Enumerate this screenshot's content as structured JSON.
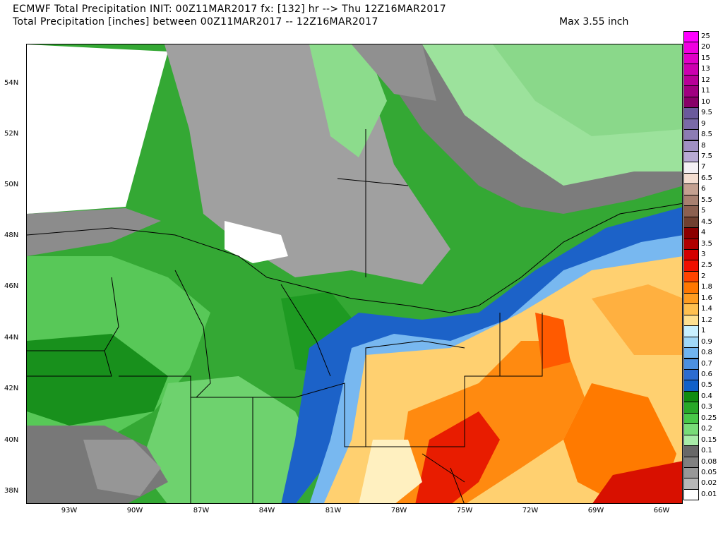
{
  "header": {
    "line1": "ECMWF Total Precipitation INIT: 00Z11MAR2017 fx: [132] hr --> Thu 12Z16MAR2017",
    "line2": "Total Precipitation [inches] between 00Z11MAR2017 -- 12Z16MAR2017",
    "max": "Max 3.55 inch"
  },
  "lat_labels": [
    "54N",
    "52N",
    "50N",
    "48N",
    "46N",
    "44N",
    "42N",
    "40N",
    "38N"
  ],
  "lon_labels": [
    "93W",
    "90W",
    "87W",
    "84W",
    "81W",
    "78W",
    "75W",
    "72W",
    "69W",
    "66W"
  ],
  "legend": [
    {
      "label": "25",
      "color": "#ff00ff"
    },
    {
      "label": "20",
      "color": "#f000e0"
    },
    {
      "label": "15",
      "color": "#e000c8"
    },
    {
      "label": "13",
      "color": "#cc00b0"
    },
    {
      "label": "12",
      "color": "#b80098"
    },
    {
      "label": "11",
      "color": "#a00080"
    },
    {
      "label": "10",
      "color": "#880068"
    },
    {
      "label": "9.5",
      "color": "#6b5a9c"
    },
    {
      "label": "9",
      "color": "#7a6aa8"
    },
    {
      "label": "8.5",
      "color": "#8c7cb4"
    },
    {
      "label": "8",
      "color": "#a090c4"
    },
    {
      "label": "7.5",
      "color": "#b8aad4"
    },
    {
      "label": "7",
      "color": "#f4f0f4"
    },
    {
      "label": "6.5",
      "color": "#f4ddd0"
    },
    {
      "label": "6",
      "color": "#c4a090"
    },
    {
      "label": "5.5",
      "color": "#a88070"
    },
    {
      "label": "5",
      "color": "#8c6050"
    },
    {
      "label": "4.5",
      "color": "#704030"
    },
    {
      "label": "4",
      "color": "#8c0000"
    },
    {
      "label": "3.5",
      "color": "#b00000"
    },
    {
      "label": "3",
      "color": "#d40000"
    },
    {
      "label": "2.5",
      "color": "#f01000"
    },
    {
      "label": "2",
      "color": "#ff4400"
    },
    {
      "label": "1.8",
      "color": "#ff7700"
    },
    {
      "label": "1.6",
      "color": "#ff9c20"
    },
    {
      "label": "1.4",
      "color": "#ffc050"
    },
    {
      "label": "1.2",
      "color": "#ffe090"
    },
    {
      "label": "1",
      "color": "#c8f0ff"
    },
    {
      "label": "0.9",
      "color": "#a0d8f8"
    },
    {
      "label": "0.8",
      "color": "#70b4f0"
    },
    {
      "label": "0.7",
      "color": "#4c90e0"
    },
    {
      "label": "0.6",
      "color": "#2c6cd0"
    },
    {
      "label": "0.5",
      "color": "#1060c8"
    },
    {
      "label": "0.4",
      "color": "#108c10"
    },
    {
      "label": "0.3",
      "color": "#28a828"
    },
    {
      "label": "0.25",
      "color": "#48c848"
    },
    {
      "label": "0.2",
      "color": "#78dc78"
    },
    {
      "label": "0.15",
      "color": "#a8eca8"
    },
    {
      "label": "0.1",
      "color": "#686868"
    },
    {
      "label": "0.08",
      "color": "#808080"
    },
    {
      "label": "0.05",
      "color": "#989898"
    },
    {
      "label": "0.02",
      "color": "#b8b8b8"
    },
    {
      "label": "0.01",
      "color": "#ffffff"
    }
  ]
}
